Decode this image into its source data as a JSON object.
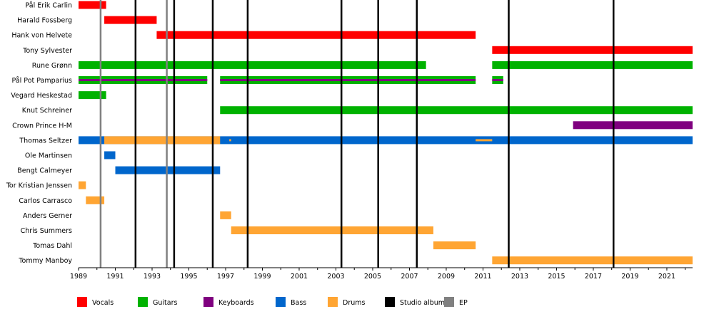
{
  "chart_data": {
    "type": "timeline",
    "title": "",
    "x_range": [
      1989,
      2022.4
    ],
    "x_tick_labels": [
      "1989",
      "1991",
      "1993",
      "1995",
      "1997",
      "1999",
      "2001",
      "2003",
      "2005",
      "2007",
      "2009",
      "2011",
      "2013",
      "2015",
      "2017",
      "2019",
      "2021"
    ],
    "members": [
      "Pål Erik Carlin",
      "Harald Fossberg",
      "Hank von Helvete",
      "Tony Sylvester",
      "Rune Grønn",
      "Pål Pot Pamparius",
      "Vegard Heskestad",
      "Knut Schreiner",
      "Crown Prince H-M",
      "Thomas Seltzer",
      "Ole Martinsen",
      "Bengt Calmeyer",
      "Tor Kristian Jenssen",
      "Carlos Carrasco",
      "Anders Gerner",
      "Chris Summers",
      "Tomas Dahl",
      "Tommy Manboy"
    ],
    "roles": {
      "vocals": {
        "label": "Vocals",
        "color": "#ff0000"
      },
      "guitars": {
        "label": "Guitars",
        "color": "#00b200"
      },
      "keyboards": {
        "label": "Keyboards",
        "color": "#7f007f"
      },
      "bass": {
        "label": "Bass",
        "color": "#0066cc"
      },
      "drums": {
        "label": "Drums",
        "color": "#ffa533"
      }
    },
    "bars": [
      {
        "member": 0,
        "role": "vocals",
        "start": 1989.0,
        "end": 1990.5
      },
      {
        "member": 1,
        "role": "vocals",
        "start": 1990.4,
        "end": 1993.25
      },
      {
        "member": 2,
        "role": "vocals",
        "start": 1993.25,
        "end": 2010.6
      },
      {
        "member": 3,
        "role": "vocals",
        "start": 2011.5,
        "end": 2022.4
      },
      {
        "member": 4,
        "role": "guitars",
        "start": 1989.0,
        "end": 2007.9
      },
      {
        "member": 4,
        "role": "guitars",
        "start": 2011.5,
        "end": 2022.4
      },
      {
        "member": 5,
        "role": "guitars",
        "start": 1989.0,
        "end": 1996.0
      },
      {
        "member": 5,
        "role": "guitars",
        "start": 1996.7,
        "end": 2010.6
      },
      {
        "member": 5,
        "role": "guitars",
        "start": 2011.5,
        "end": 2012.1
      },
      {
        "member": 5,
        "role": "keyboards",
        "start": 1989.0,
        "end": 1996.0,
        "thin": true
      },
      {
        "member": 5,
        "role": "keyboards",
        "start": 1996.7,
        "end": 2010.6,
        "thin": true
      },
      {
        "member": 5,
        "role": "keyboards",
        "start": 2011.5,
        "end": 2012.1,
        "thin": true
      },
      {
        "member": 6,
        "role": "guitars",
        "start": 1989.0,
        "end": 1990.5
      },
      {
        "member": 7,
        "role": "guitars",
        "start": 1996.7,
        "end": 2022.4
      },
      {
        "member": 8,
        "role": "keyboards",
        "start": 2015.9,
        "end": 2022.4
      },
      {
        "member": 9,
        "role": "bass",
        "start": 1989.0,
        "end": 2022.4
      },
      {
        "member": 9,
        "role": "drums",
        "start": 1990.4,
        "end": 1996.7
      },
      {
        "member": 9,
        "role": "drums",
        "start": 1997.2,
        "end": 1997.3,
        "thin": true
      },
      {
        "member": 9,
        "role": "drums",
        "start": 2010.6,
        "end": 2011.5,
        "thin": true
      },
      {
        "member": 10,
        "role": "bass",
        "start": 1990.4,
        "end": 1991.0
      },
      {
        "member": 11,
        "role": "bass",
        "start": 1991.0,
        "end": 1996.7
      },
      {
        "member": 12,
        "role": "drums",
        "start": 1989.0,
        "end": 1989.4
      },
      {
        "member": 13,
        "role": "drums",
        "start": 1989.4,
        "end": 1990.4
      },
      {
        "member": 14,
        "role": "drums",
        "start": 1996.7,
        "end": 1997.3
      },
      {
        "member": 15,
        "role": "drums",
        "start": 1997.3,
        "end": 2008.3
      },
      {
        "member": 16,
        "role": "drums",
        "start": 2008.3,
        "end": 2010.6
      },
      {
        "member": 17,
        "role": "drums",
        "start": 2011.5,
        "end": 2022.4
      }
    ],
    "studio_albums": [
      1992.1,
      1994.2,
      1996.3,
      1998.2,
      2003.3,
      2005.3,
      2007.4,
      2012.4,
      2018.1
    ],
    "eps": [
      1990.2,
      1993.8
    ],
    "legend": [
      {
        "label": "Vocals",
        "color": "#ff0000"
      },
      {
        "label": "Guitars",
        "color": "#00b200"
      },
      {
        "label": "Keyboards",
        "color": "#7f007f"
      },
      {
        "label": "Bass",
        "color": "#0066cc"
      },
      {
        "label": "Drums",
        "color": "#ffa533"
      },
      {
        "label": "Studio album",
        "color": "#000000"
      },
      {
        "label": "EP",
        "color": "#808080"
      }
    ]
  }
}
